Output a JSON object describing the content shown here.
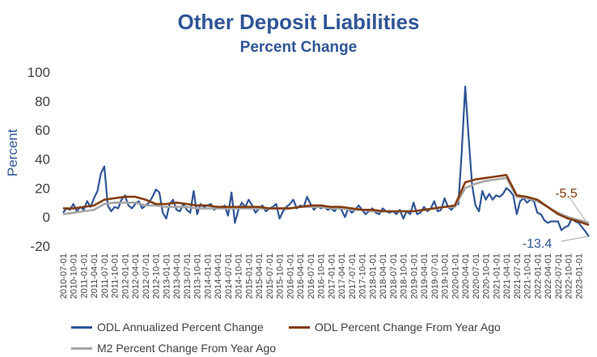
{
  "chart_data": {
    "type": "line",
    "title": "Other Deposit Liabilities",
    "subtitle": "Percent Change",
    "ylabel": "Percent",
    "ylim": [
      -20,
      100
    ],
    "yticks": [
      -20,
      0,
      20,
      40,
      60,
      80,
      100
    ],
    "x_start": "2010-07-01",
    "x_end": "2023-04-01",
    "xticks": [
      "2010-07-01",
      "2010-10-01",
      "2011-01-01",
      "2011-04-01",
      "2011-07-01",
      "2011-10-01",
      "2012-01-01",
      "2012-04-01",
      "2012-07-01",
      "2012-10-01",
      "2013-01-01",
      "2013-04-01",
      "2013-07-01",
      "2013-10-01",
      "2014-01-01",
      "2014-04-01",
      "2014-07-01",
      "2014-10-01",
      "2015-01-01",
      "2015-04-01",
      "2015-07-01",
      "2015-10-01",
      "2016-01-01",
      "2016-04-01",
      "2016-07-01",
      "2016-10-01",
      "2017-01-01",
      "2017-04-01",
      "2017-07-01",
      "2017-10-01",
      "2018-01-01",
      "2018-04-01",
      "2018-07-01",
      "2018-10-01",
      "2019-01-01",
      "2019-04-01",
      "2019-07-01",
      "2019-10-01",
      "2020-01-01",
      "2020-04-01",
      "2020-07-01",
      "2020-10-01",
      "2021-01-01",
      "2021-04-01",
      "2021-07-01",
      "2021-10-01",
      "2022-01-01",
      "2022-04-01",
      "2022-07-01",
      "2022-10-01",
      "2023-01-01"
    ],
    "series": [
      {
        "name": "ODL Annualized Percent Change",
        "color": "#2f5597",
        "points": [
          [
            "2010-07-01",
            3
          ],
          [
            "2010-08-01",
            6
          ],
          [
            "2010-09-01",
            5
          ],
          [
            "2010-10-01",
            9
          ],
          [
            "2010-11-01",
            4
          ],
          [
            "2010-12-01",
            7
          ],
          [
            "2011-01-01",
            5
          ],
          [
            "2011-02-01",
            11
          ],
          [
            "2011-03-01",
            7
          ],
          [
            "2011-04-01",
            13
          ],
          [
            "2011-05-01",
            18
          ],
          [
            "2011-06-01",
            30
          ],
          [
            "2011-07-01",
            35
          ],
          [
            "2011-08-01",
            8
          ],
          [
            "2011-09-01",
            4
          ],
          [
            "2011-10-01",
            7
          ],
          [
            "2011-11-01",
            6
          ],
          [
            "2011-12-01",
            12
          ],
          [
            "2012-01-01",
            15
          ],
          [
            "2012-02-01",
            8
          ],
          [
            "2012-03-01",
            6
          ],
          [
            "2012-04-01",
            9
          ],
          [
            "2012-05-01",
            11
          ],
          [
            "2012-06-01",
            6
          ],
          [
            "2012-07-01",
            8
          ],
          [
            "2012-08-01",
            10
          ],
          [
            "2012-09-01",
            14
          ],
          [
            "2012-10-01",
            19
          ],
          [
            "2012-11-01",
            17
          ],
          [
            "2012-12-01",
            3
          ],
          [
            "2013-01-01",
            -1
          ],
          [
            "2013-02-01",
            9
          ],
          [
            "2013-03-01",
            12
          ],
          [
            "2013-04-01",
            5
          ],
          [
            "2013-05-01",
            4
          ],
          [
            "2013-06-01",
            9
          ],
          [
            "2013-07-01",
            5
          ],
          [
            "2013-08-01",
            3
          ],
          [
            "2013-09-01",
            18
          ],
          [
            "2013-10-01",
            2
          ],
          [
            "2013-11-01",
            9
          ],
          [
            "2013-12-01",
            7
          ],
          [
            "2014-01-01",
            8
          ],
          [
            "2014-02-01",
            9
          ],
          [
            "2014-03-01",
            5
          ],
          [
            "2014-04-01",
            7
          ],
          [
            "2014-05-01",
            6
          ],
          [
            "2014-06-01",
            8
          ],
          [
            "2014-07-01",
            1
          ],
          [
            "2014-08-01",
            17
          ],
          [
            "2014-09-01",
            -4
          ],
          [
            "2014-10-01",
            5
          ],
          [
            "2014-11-01",
            10
          ],
          [
            "2014-12-01",
            7
          ],
          [
            "2015-01-01",
            12
          ],
          [
            "2015-02-01",
            8
          ],
          [
            "2015-03-01",
            3
          ],
          [
            "2015-04-01",
            6
          ],
          [
            "2015-05-01",
            8
          ],
          [
            "2015-06-01",
            4
          ],
          [
            "2015-07-01",
            6
          ],
          [
            "2015-08-01",
            7
          ],
          [
            "2015-09-01",
            9
          ],
          [
            "2015-10-01",
            -1
          ],
          [
            "2015-11-01",
            4
          ],
          [
            "2015-12-01",
            7
          ],
          [
            "2016-01-01",
            9
          ],
          [
            "2016-02-01",
            12
          ],
          [
            "2016-03-01",
            6
          ],
          [
            "2016-04-01",
            8
          ],
          [
            "2016-05-01",
            7
          ],
          [
            "2016-06-01",
            14
          ],
          [
            "2016-07-01",
            9
          ],
          [
            "2016-08-01",
            5
          ],
          [
            "2016-09-01",
            8
          ],
          [
            "2016-10-01",
            6
          ],
          [
            "2016-11-01",
            7
          ],
          [
            "2016-12-01",
            5
          ],
          [
            "2017-01-01",
            6
          ],
          [
            "2017-02-01",
            4
          ],
          [
            "2017-03-01",
            7
          ],
          [
            "2017-04-01",
            5
          ],
          [
            "2017-05-01",
            0
          ],
          [
            "2017-06-01",
            6
          ],
          [
            "2017-07-01",
            3
          ],
          [
            "2017-08-01",
            5
          ],
          [
            "2017-09-01",
            8
          ],
          [
            "2017-10-01",
            5
          ],
          [
            "2017-11-01",
            2
          ],
          [
            "2017-12-01",
            4
          ],
          [
            "2018-01-01",
            6
          ],
          [
            "2018-02-01",
            3
          ],
          [
            "2018-03-01",
            2
          ],
          [
            "2018-04-01",
            6
          ],
          [
            "2018-05-01",
            4
          ],
          [
            "2018-06-01",
            3
          ],
          [
            "2018-07-01",
            4
          ],
          [
            "2018-08-01",
            2
          ],
          [
            "2018-09-01",
            5
          ],
          [
            "2018-10-01",
            -1
          ],
          [
            "2018-11-01",
            4
          ],
          [
            "2018-12-01",
            2
          ],
          [
            "2019-01-01",
            10
          ],
          [
            "2019-02-01",
            2
          ],
          [
            "2019-03-01",
            3
          ],
          [
            "2019-04-01",
            7
          ],
          [
            "2019-05-01",
            4
          ],
          [
            "2019-06-01",
            6
          ],
          [
            "2019-07-01",
            11
          ],
          [
            "2019-08-01",
            4
          ],
          [
            "2019-09-01",
            5
          ],
          [
            "2019-10-01",
            13
          ],
          [
            "2019-11-01",
            7
          ],
          [
            "2019-12-01",
            5
          ],
          [
            "2020-01-01",
            8
          ],
          [
            "2020-02-01",
            9
          ],
          [
            "2020-03-01",
            45
          ],
          [
            "2020-04-01",
            90
          ],
          [
            "2020-05-01",
            55
          ],
          [
            "2020-06-01",
            22
          ],
          [
            "2020-07-01",
            8
          ],
          [
            "2020-08-01",
            4
          ],
          [
            "2020-09-01",
            18
          ],
          [
            "2020-10-01",
            12
          ],
          [
            "2020-11-01",
            16
          ],
          [
            "2020-12-01",
            12
          ],
          [
            "2021-01-01",
            15
          ],
          [
            "2021-02-01",
            14
          ],
          [
            "2021-03-01",
            16
          ],
          [
            "2021-04-01",
            20
          ],
          [
            "2021-05-01",
            18
          ],
          [
            "2021-06-01",
            15
          ],
          [
            "2021-07-01",
            2
          ],
          [
            "2021-08-01",
            11
          ],
          [
            "2021-09-01",
            13
          ],
          [
            "2021-10-01",
            10
          ],
          [
            "2021-11-01",
            12
          ],
          [
            "2021-12-01",
            11
          ],
          [
            "2022-01-01",
            3
          ],
          [
            "2022-02-01",
            2
          ],
          [
            "2022-03-01",
            -2
          ],
          [
            "2022-04-01",
            -4
          ],
          [
            "2022-05-01",
            -3
          ],
          [
            "2022-06-01",
            -3
          ],
          [
            "2022-07-01",
            -3
          ],
          [
            "2022-08-01",
            -9
          ],
          [
            "2022-09-01",
            -7
          ],
          [
            "2022-10-01",
            -6
          ],
          [
            "2022-11-01",
            -1
          ],
          [
            "2022-12-01",
            -3
          ],
          [
            "2023-01-01",
            -4
          ],
          [
            "2023-02-01",
            -7
          ],
          [
            "2023-03-01",
            -10
          ],
          [
            "2023-04-01",
            -13.4
          ]
        ]
      },
      {
        "name": "ODL Percent Change From Year Ago",
        "color": "#843c0c",
        "points": [
          [
            "2010-07-01",
            6
          ],
          [
            "2010-10-01",
            6
          ],
          [
            "2011-01-01",
            7
          ],
          [
            "2011-04-01",
            8
          ],
          [
            "2011-07-01",
            12
          ],
          [
            "2011-10-01",
            13
          ],
          [
            "2012-01-01",
            14
          ],
          [
            "2012-04-01",
            14
          ],
          [
            "2012-07-01",
            12
          ],
          [
            "2012-10-01",
            9
          ],
          [
            "2013-01-01",
            9
          ],
          [
            "2013-04-01",
            10
          ],
          [
            "2013-07-01",
            9
          ],
          [
            "2013-10-01",
            8
          ],
          [
            "2014-01-01",
            8
          ],
          [
            "2014-04-01",
            7
          ],
          [
            "2014-07-01",
            7
          ],
          [
            "2014-10-01",
            7
          ],
          [
            "2015-01-01",
            7
          ],
          [
            "2015-04-01",
            7
          ],
          [
            "2015-07-01",
            6
          ],
          [
            "2015-10-01",
            6
          ],
          [
            "2016-01-01",
            6
          ],
          [
            "2016-04-01",
            7
          ],
          [
            "2016-07-01",
            8
          ],
          [
            "2016-10-01",
            8
          ],
          [
            "2017-01-01",
            7
          ],
          [
            "2017-04-01",
            7
          ],
          [
            "2017-07-01",
            6
          ],
          [
            "2017-10-01",
            5
          ],
          [
            "2018-01-01",
            5
          ],
          [
            "2018-04-01",
            4
          ],
          [
            "2018-07-01",
            4
          ],
          [
            "2018-10-01",
            4
          ],
          [
            "2019-01-01",
            4
          ],
          [
            "2019-04-01",
            5
          ],
          [
            "2019-07-01",
            6
          ],
          [
            "2019-10-01",
            7
          ],
          [
            "2020-01-01",
            8
          ],
          [
            "2020-04-01",
            24
          ],
          [
            "2020-07-01",
            26
          ],
          [
            "2020-10-01",
            27
          ],
          [
            "2021-01-01",
            28
          ],
          [
            "2021-04-01",
            29
          ],
          [
            "2021-07-01",
            15
          ],
          [
            "2021-10-01",
            14
          ],
          [
            "2022-01-01",
            12
          ],
          [
            "2022-04-01",
            7
          ],
          [
            "2022-07-01",
            2
          ],
          [
            "2022-10-01",
            -1
          ],
          [
            "2023-01-01",
            -3
          ],
          [
            "2023-04-01",
            -5.5
          ]
        ]
      },
      {
        "name": "M2 Percent Change From Year Ago",
        "color": "#a6a6a6",
        "points": [
          [
            "2010-07-01",
            2
          ],
          [
            "2010-10-01",
            3
          ],
          [
            "2011-01-01",
            4
          ],
          [
            "2011-04-01",
            5
          ],
          [
            "2011-07-01",
            9
          ],
          [
            "2011-10-01",
            10
          ],
          [
            "2012-01-01",
            10
          ],
          [
            "2012-04-01",
            10
          ],
          [
            "2012-07-01",
            8
          ],
          [
            "2012-10-01",
            8
          ],
          [
            "2013-01-01",
            7
          ],
          [
            "2013-04-01",
            7
          ],
          [
            "2013-07-01",
            7
          ],
          [
            "2013-10-01",
            6
          ],
          [
            "2014-01-01",
            6
          ],
          [
            "2014-04-01",
            6
          ],
          [
            "2014-07-01",
            6
          ],
          [
            "2014-10-01",
            6
          ],
          [
            "2015-01-01",
            6
          ],
          [
            "2015-04-01",
            6
          ],
          [
            "2015-07-01",
            6
          ],
          [
            "2015-10-01",
            6
          ],
          [
            "2016-01-01",
            6
          ],
          [
            "2016-04-01",
            7
          ],
          [
            "2016-07-01",
            7
          ],
          [
            "2016-10-01",
            7
          ],
          [
            "2017-01-01",
            6
          ],
          [
            "2017-04-01",
            6
          ],
          [
            "2017-07-01",
            5
          ],
          [
            "2017-10-01",
            5
          ],
          [
            "2018-01-01",
            4
          ],
          [
            "2018-04-01",
            4
          ],
          [
            "2018-07-01",
            4
          ],
          [
            "2018-10-01",
            4
          ],
          [
            "2019-01-01",
            4
          ],
          [
            "2019-04-01",
            5
          ],
          [
            "2019-07-01",
            6
          ],
          [
            "2019-10-01",
            7
          ],
          [
            "2020-01-01",
            7
          ],
          [
            "2020-04-01",
            20
          ],
          [
            "2020-07-01",
            23
          ],
          [
            "2020-10-01",
            25
          ],
          [
            "2021-01-01",
            26
          ],
          [
            "2021-04-01",
            27
          ],
          [
            "2021-07-01",
            14
          ],
          [
            "2021-10-01",
            13
          ],
          [
            "2022-01-01",
            11
          ],
          [
            "2022-04-01",
            7
          ],
          [
            "2022-07-01",
            3
          ],
          [
            "2022-10-01",
            0
          ],
          [
            "2023-01-01",
            -2
          ],
          [
            "2023-04-01",
            -4
          ]
        ]
      }
    ],
    "annotations": [
      {
        "text": "-5.5",
        "color": "#843c0c"
      },
      {
        "text": "-13.4",
        "color": "#2f5597"
      }
    ],
    "legend_placement": "bottom",
    "grid": false
  }
}
